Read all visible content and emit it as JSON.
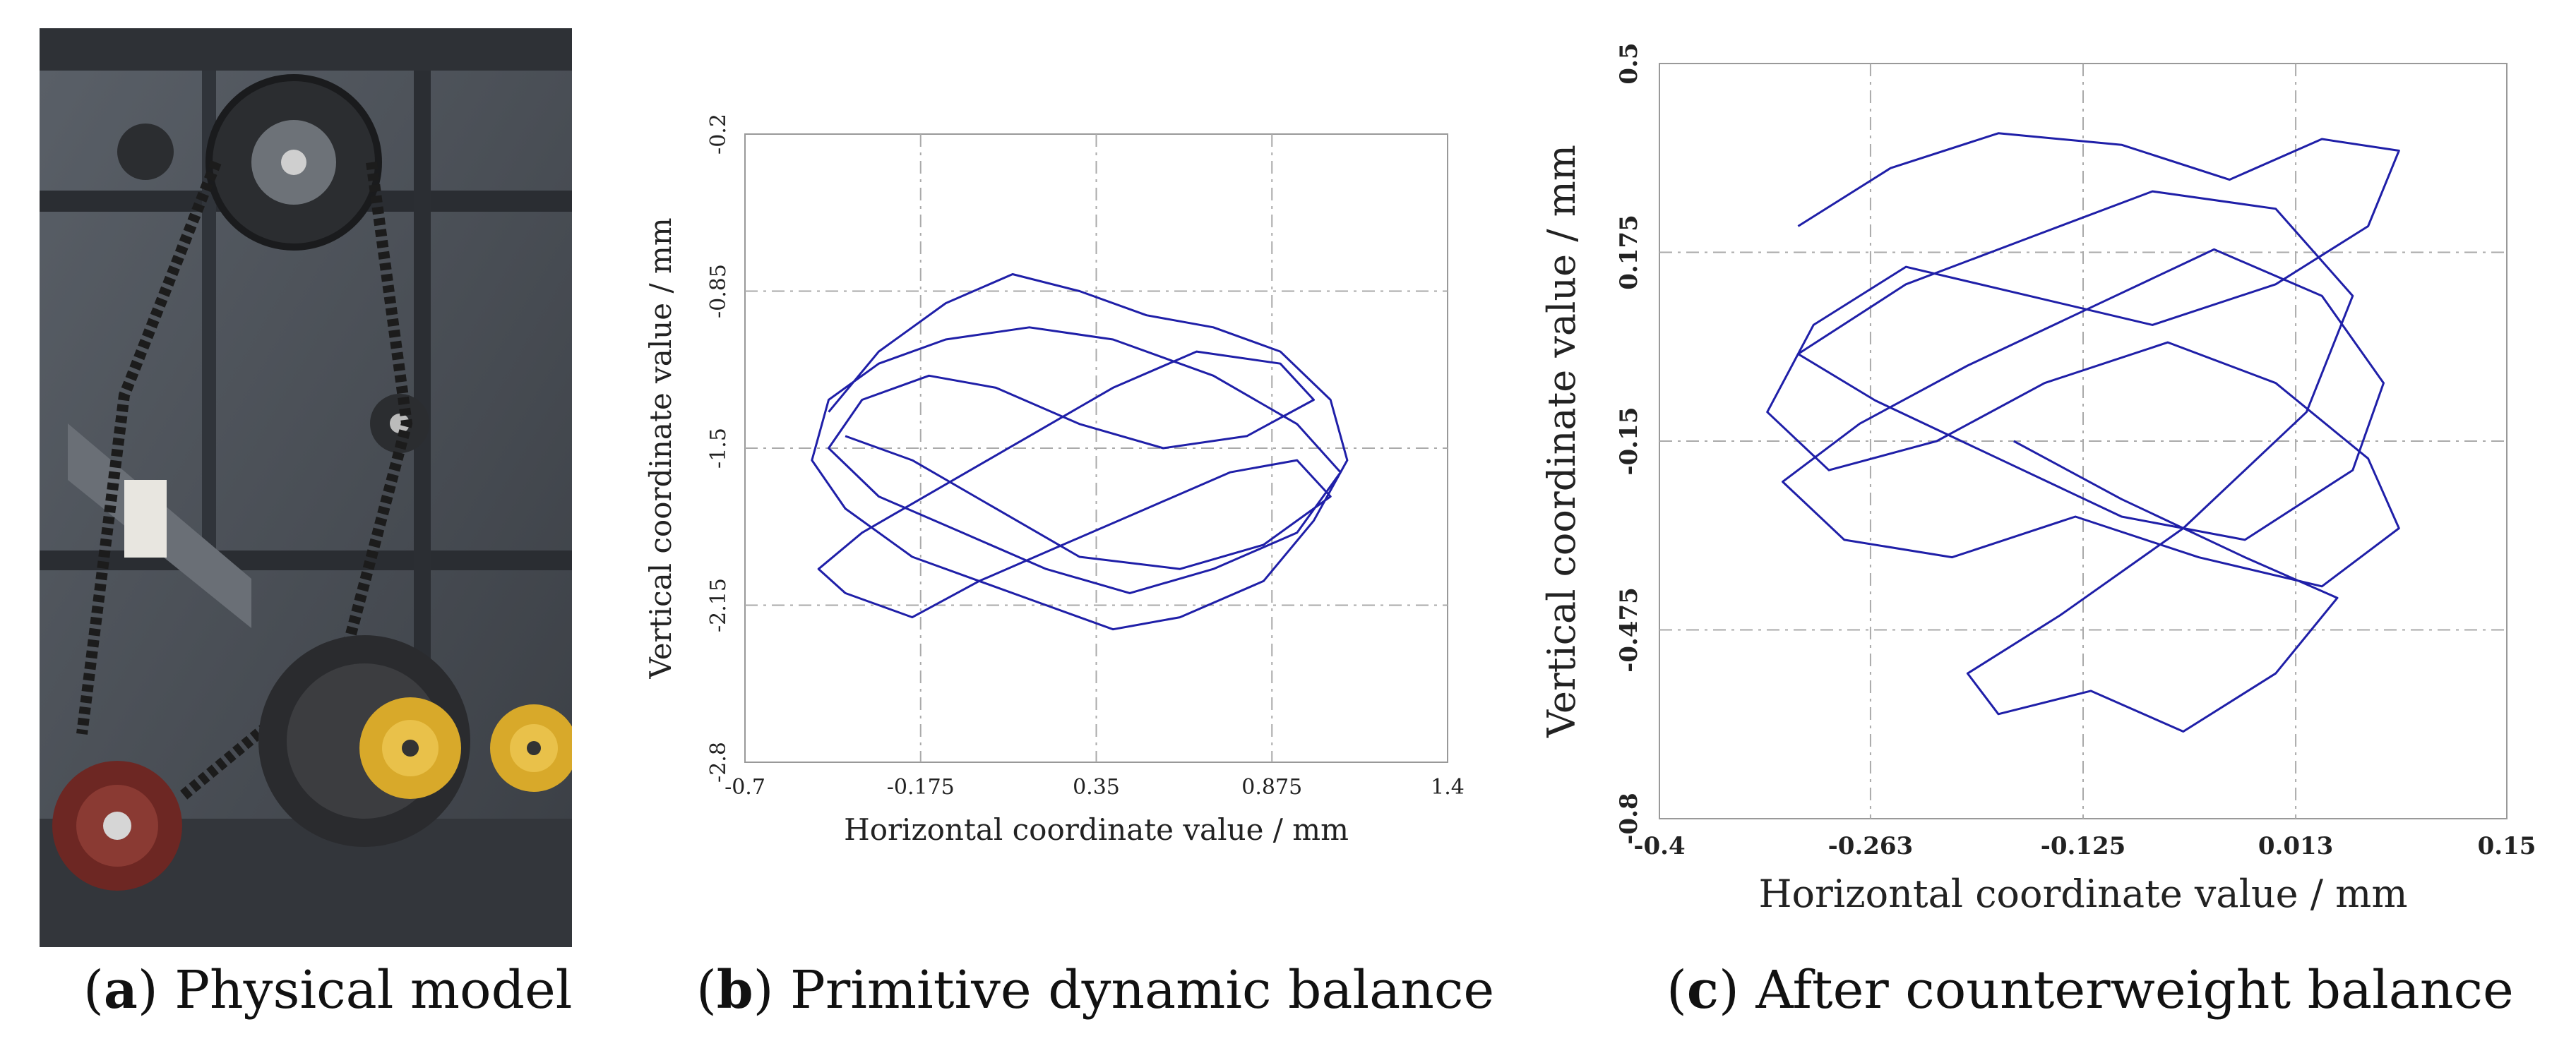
{
  "panels": {
    "a": {
      "letter": "a",
      "caption": "Physical model",
      "photo_description_colors": {
        "metal": "#4a4f55",
        "wheel_yellow": "#e2b52a",
        "wheel_red": "#7a2a26"
      }
    },
    "b": {
      "letter": "b",
      "caption": "Primitive dynamic balance"
    },
    "c": {
      "letter": "c",
      "caption": "After counterweight balance"
    }
  },
  "chart_data": [
    {
      "id": "b",
      "type": "line",
      "title": "",
      "xlabel": "Horizontal coordinate value / mm",
      "ylabel": "Vertical coordinate value / mm",
      "xlim": [
        -0.7,
        1.4
      ],
      "ylim": [
        -2.8,
        -0.2
      ],
      "x_ticks": [
        "-0.7",
        "-0.175",
        "0.35",
        "0.875",
        "1.4"
      ],
      "y_ticks": [
        "-0.2",
        "-0.85",
        "-1.5",
        "-2.15",
        "-2.8"
      ],
      "x_tick_values": [
        -0.7,
        -0.175,
        0.35,
        0.875,
        1.4
      ],
      "y_tick_values": [
        -0.2,
        -0.85,
        -1.5,
        -2.15,
        -2.8
      ],
      "grid": true,
      "line_color": "#1f1fa8",
      "series": [
        {
          "x": [
            -0.45,
            -0.3,
            -0.1,
            0.1,
            0.3,
            0.5,
            0.7,
            0.9,
            1.05,
            1.1,
            1.0,
            0.85,
            0.6,
            0.4,
            0.2,
            0.0,
            -0.2,
            -0.4,
            -0.5,
            -0.45,
            -0.3,
            -0.1,
            0.15,
            0.4,
            0.7,
            0.95,
            1.08,
            0.95,
            0.7,
            0.45,
            0.2,
            -0.05,
            -0.3,
            -0.45,
            -0.35,
            -0.15,
            0.05,
            0.3,
            0.55,
            0.8,
            1.0,
            0.9,
            0.65,
            0.4,
            0.15,
            -0.1,
            -0.35,
            -0.48,
            -0.4,
            -0.2,
            0.0,
            0.25,
            0.5,
            0.75,
            0.95,
            1.05,
            0.85,
            0.6,
            0.3,
            0.05,
            -0.2,
            -0.4
          ],
          "y": [
            -1.35,
            -1.1,
            -0.9,
            -0.78,
            -0.85,
            -0.95,
            -1.0,
            -1.1,
            -1.3,
            -1.55,
            -1.8,
            -2.05,
            -2.2,
            -2.25,
            -2.15,
            -2.05,
            -1.95,
            -1.75,
            -1.55,
            -1.3,
            -1.15,
            -1.05,
            -1.0,
            -1.05,
            -1.2,
            -1.4,
            -1.6,
            -1.85,
            -2.0,
            -2.1,
            -2.0,
            -1.85,
            -1.7,
            -1.5,
            -1.3,
            -1.2,
            -1.25,
            -1.4,
            -1.5,
            -1.45,
            -1.3,
            -1.15,
            -1.1,
            -1.25,
            -1.45,
            -1.65,
            -1.85,
            -2.0,
            -2.1,
            -2.2,
            -2.05,
            -1.9,
            -1.75,
            -1.6,
            -1.55,
            -1.7,
            -1.9,
            -2.0,
            -1.95,
            -1.75,
            -1.55,
            -1.45
          ]
        }
      ]
    },
    {
      "id": "c",
      "type": "line",
      "title": "",
      "xlabel": "Horizontal coordinate value / mm",
      "ylabel": "Vertical coordinate value / mm",
      "xlim": [
        -0.4,
        0.15
      ],
      "ylim": [
        -0.8,
        0.5
      ],
      "x_ticks": [
        "-0.4",
        "-0.263",
        "-0.125",
        "0.013",
        "0.15"
      ],
      "y_ticks": [
        "0.5",
        "0.175",
        "-0.15",
        "-0.475",
        "-0.8"
      ],
      "x_tick_values": [
        -0.4,
        -0.263,
        -0.125,
        0.013,
        0.15
      ],
      "y_tick_values": [
        0.5,
        0.175,
        -0.15,
        -0.475,
        -0.8
      ],
      "grid": true,
      "line_color": "#1f1fa8",
      "series": [
        {
          "x": [
            -0.31,
            -0.25,
            -0.18,
            -0.1,
            -0.03,
            0.03,
            0.08,
            0.06,
            0.0,
            -0.08,
            -0.16,
            -0.24,
            -0.3,
            -0.33,
            -0.29,
            -0.22,
            -0.15,
            -0.07,
            0.0,
            0.06,
            0.08,
            0.03,
            -0.05,
            -0.13,
            -0.21,
            -0.28,
            -0.32,
            -0.27,
            -0.2,
            -0.12,
            -0.04,
            0.03,
            0.07,
            0.05,
            -0.02,
            -0.1,
            -0.18,
            -0.26,
            -0.31,
            -0.24,
            -0.16,
            -0.08,
            0.0,
            0.05,
            0.02,
            -0.06,
            -0.14,
            -0.2,
            -0.18,
            -0.12,
            -0.06,
            0.0,
            0.04,
            -0.02,
            -0.1,
            -0.17
          ],
          "y": [
            0.22,
            0.32,
            0.38,
            0.36,
            0.3,
            0.37,
            0.35,
            0.22,
            0.12,
            0.05,
            0.1,
            0.15,
            0.05,
            -0.1,
            -0.2,
            -0.15,
            -0.05,
            0.02,
            -0.05,
            -0.18,
            -0.3,
            -0.4,
            -0.35,
            -0.28,
            -0.35,
            -0.32,
            -0.22,
            -0.12,
            -0.02,
            0.08,
            0.18,
            0.1,
            -0.05,
            -0.2,
            -0.32,
            -0.28,
            -0.18,
            -0.08,
            0.0,
            0.12,
            0.2,
            0.28,
            0.25,
            0.1,
            -0.1,
            -0.3,
            -0.45,
            -0.55,
            -0.62,
            -0.58,
            -0.65,
            -0.55,
            -0.42,
            -0.35,
            -0.25,
            -0.15
          ]
        }
      ]
    }
  ]
}
